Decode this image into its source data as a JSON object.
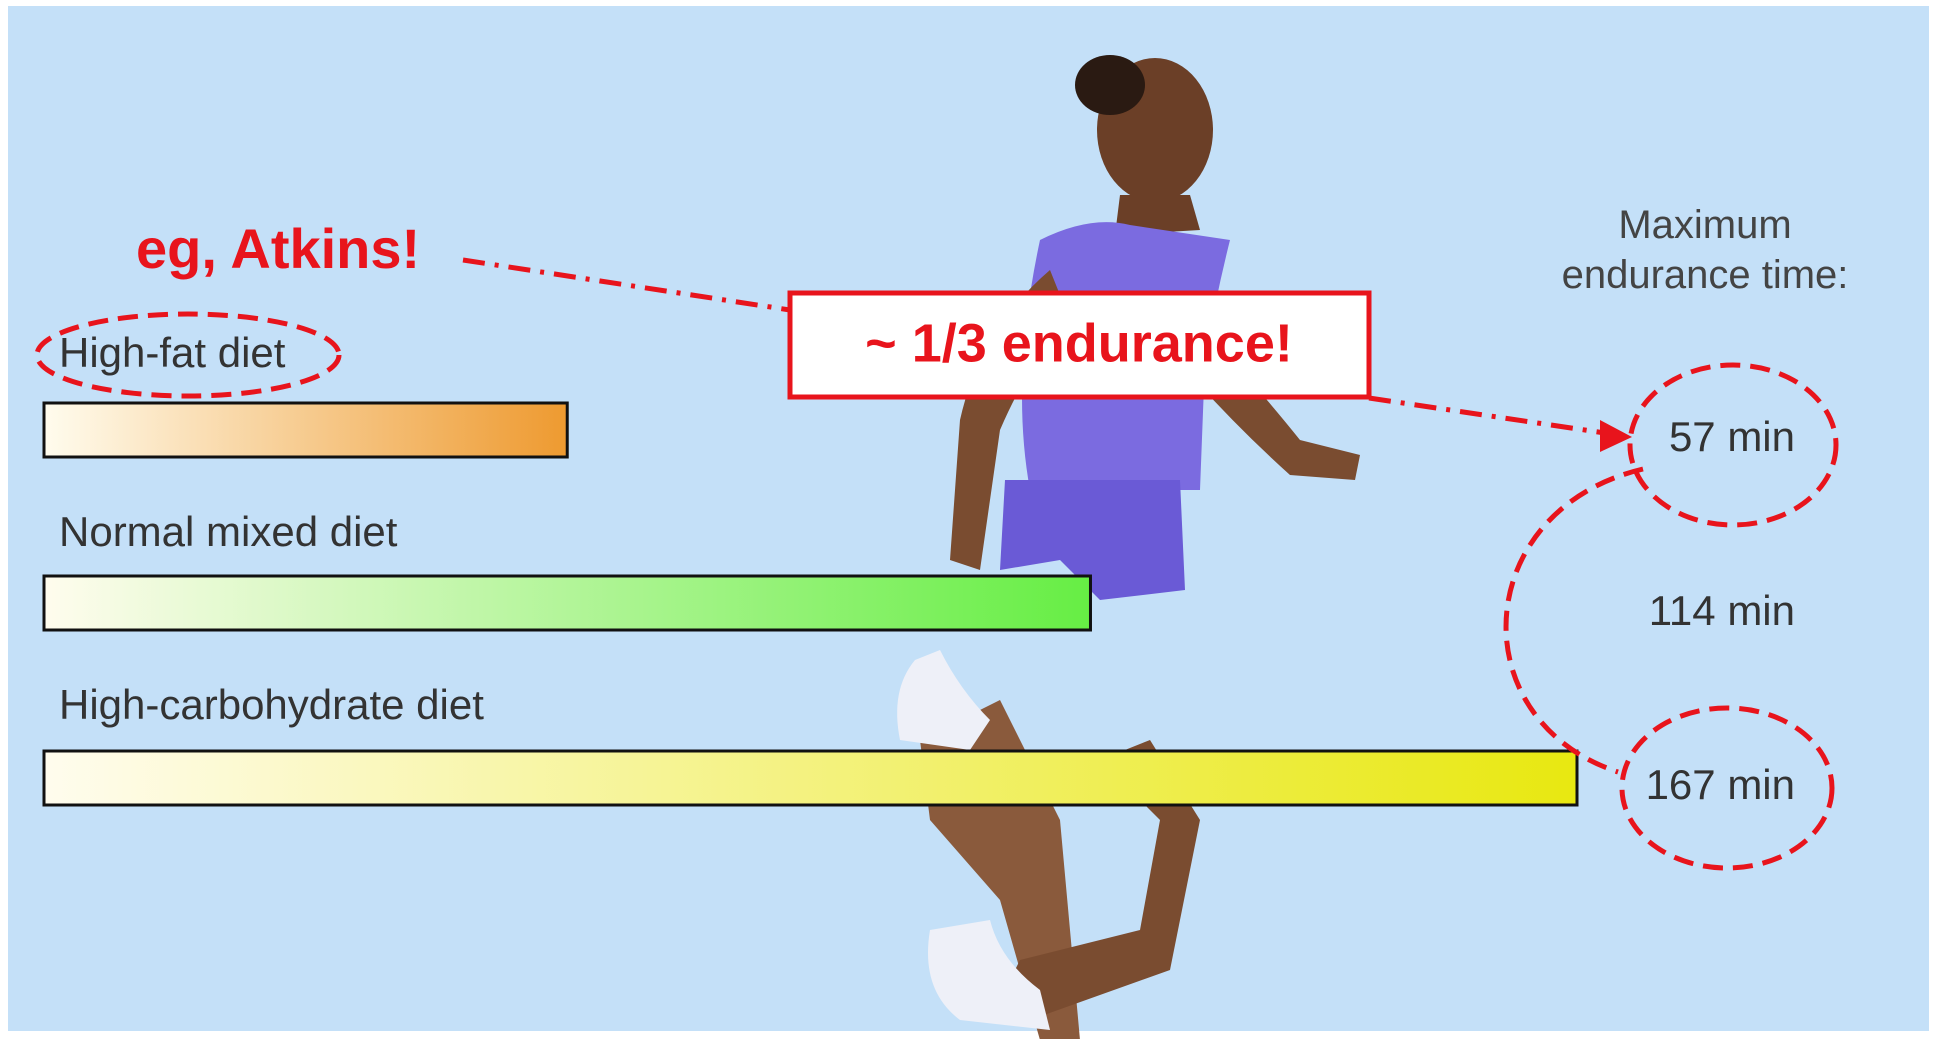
{
  "chart_data": {
    "type": "bar",
    "orientation": "horizontal",
    "title": "Maximum endurance time:",
    "categories": [
      "High-fat diet",
      "Normal mixed diet",
      "High-carbohydrate diet"
    ],
    "values": [
      57,
      114,
      167
    ],
    "value_labels": [
      "57 min",
      "114 min",
      "167 min"
    ],
    "colors": [
      "#ee9a30",
      "#66ee44",
      "#e8e810"
    ],
    "annotations": [
      "eg, Atkins!",
      "~ 1/3 endurance!"
    ]
  }
}
